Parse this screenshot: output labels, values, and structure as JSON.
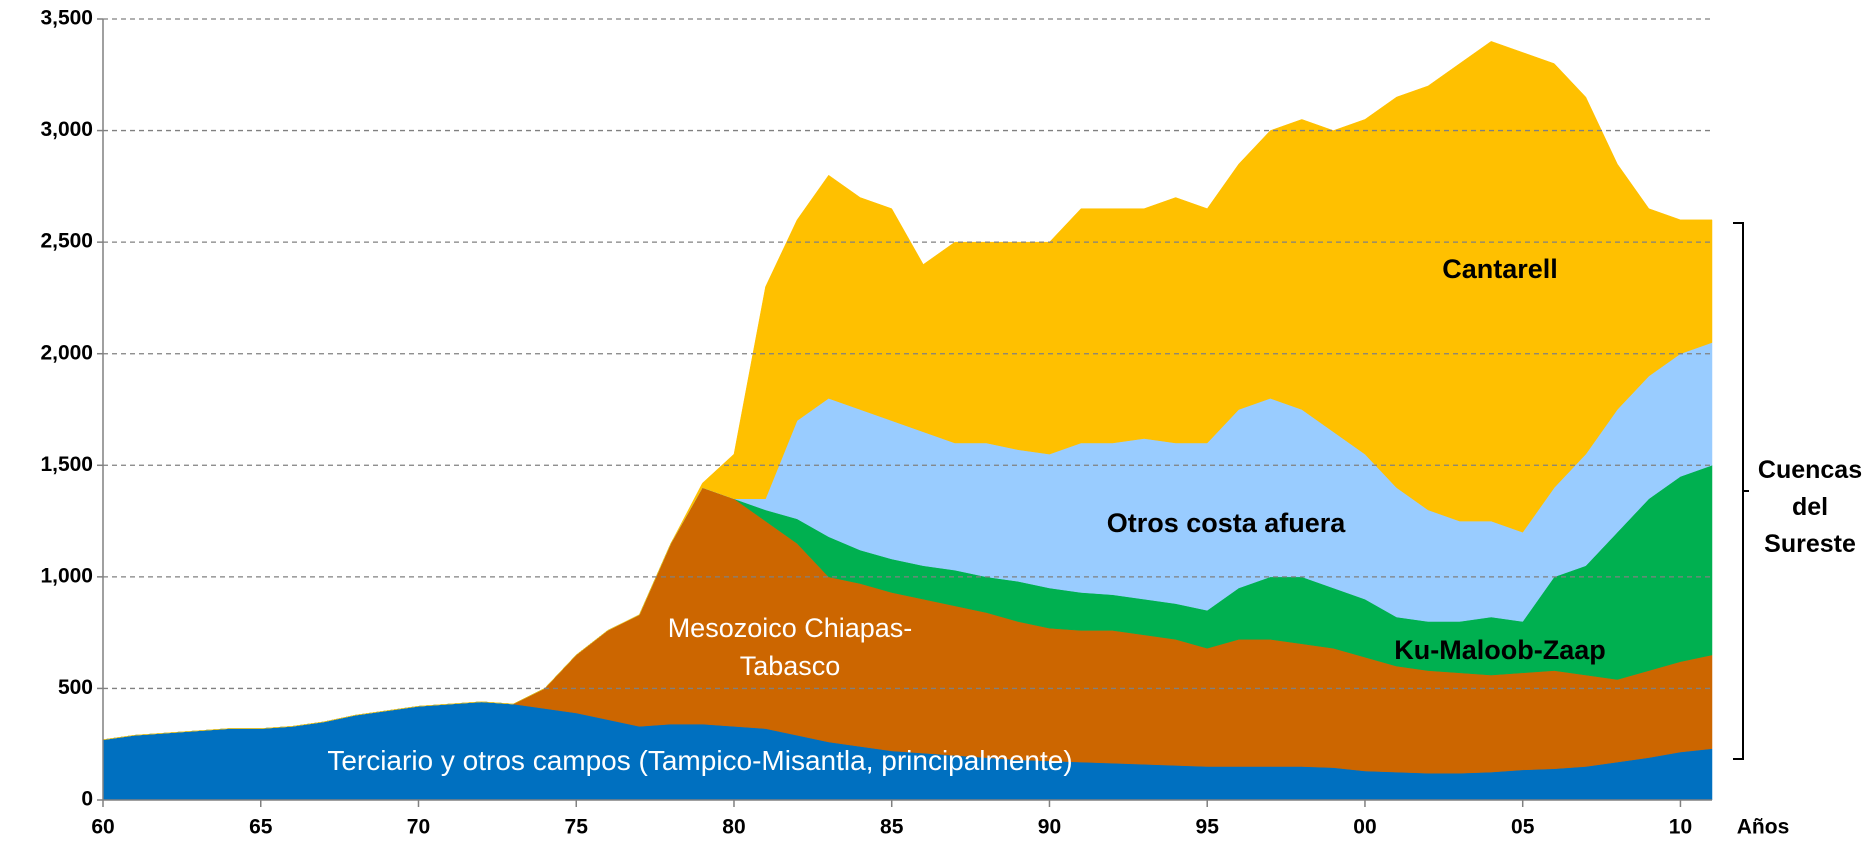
{
  "chart_data": {
    "type": "stacked_area",
    "x_label": "Años",
    "bracket_label": [
      "Cuencas",
      "del",
      "Sureste"
    ],
    "x": [
      1960,
      1961,
      1962,
      1963,
      1964,
      1965,
      1966,
      1967,
      1968,
      1969,
      1970,
      1971,
      1972,
      1973,
      1974,
      1975,
      1976,
      1977,
      1978,
      1979,
      1980,
      1981,
      1982,
      1983,
      1984,
      1985,
      1986,
      1987,
      1988,
      1989,
      1990,
      1991,
      1992,
      1993,
      1994,
      1995,
      1996,
      1997,
      1998,
      1999,
      2000,
      2001,
      2002,
      2003,
      2004,
      2005,
      2006,
      2007,
      2008,
      2009,
      2010,
      2011
    ],
    "xlim": [
      1960,
      2011
    ],
    "xticks": [
      {
        "value": 1960,
        "label": "60"
      },
      {
        "value": 1965,
        "label": "65"
      },
      {
        "value": 1970,
        "label": "70"
      },
      {
        "value": 1975,
        "label": "75"
      },
      {
        "value": 1980,
        "label": "80"
      },
      {
        "value": 1985,
        "label": "85"
      },
      {
        "value": 1990,
        "label": "90"
      },
      {
        "value": 1995,
        "label": "95"
      },
      {
        "value": 2000,
        "label": "00"
      },
      {
        "value": 2005,
        "label": "05"
      },
      {
        "value": 2010,
        "label": "10"
      }
    ],
    "ylim": [
      0,
      3500
    ],
    "yticks": [
      0,
      500,
      {
        "value": 1000,
        "label": "1,000"
      },
      {
        "value": 1500,
        "label": "1,500"
      },
      {
        "value": 2000,
        "label": "2,000"
      },
      {
        "value": 2500,
        "label": "2,500"
      },
      {
        "value": 3000,
        "label": "3,000"
      },
      {
        "value": 3500,
        "label": "3,500"
      }
    ],
    "grid": true,
    "series": [
      {
        "name": "Terciario y otros campos (Tampico-Misantla, principalmente)",
        "color": "#0070c0",
        "values": [
          270,
          290,
          300,
          310,
          320,
          320,
          330,
          350,
          380,
          400,
          420,
          430,
          440,
          430,
          410,
          390,
          360,
          330,
          340,
          340,
          330,
          320,
          290,
          260,
          240,
          220,
          210,
          200,
          190,
          180,
          175,
          170,
          165,
          160,
          155,
          150,
          150,
          150,
          150,
          145,
          130,
          125,
          120,
          120,
          125,
          135,
          140,
          150,
          170,
          190,
          215,
          230
        ]
      },
      {
        "name": "Mesozoico Chiapas-Tabasco",
        "color": "#cc6600",
        "values": [
          0,
          0,
          0,
          0,
          0,
          0,
          0,
          0,
          0,
          0,
          0,
          0,
          0,
          0,
          90,
          260,
          400,
          500,
          810,
          1060,
          1020,
          930,
          860,
          740,
          730,
          710,
          690,
          670,
          650,
          620,
          595,
          590,
          595,
          580,
          565,
          530,
          570,
          570,
          550,
          535,
          510,
          475,
          460,
          450,
          435,
          435,
          440,
          410,
          370,
          390,
          405,
          420
        ]
      },
      {
        "name": "Ku-Maloob-Zaap",
        "color": "#00b050",
        "values": [
          0,
          0,
          0,
          0,
          0,
          0,
          0,
          0,
          0,
          0,
          0,
          0,
          0,
          0,
          0,
          0,
          0,
          0,
          0,
          0,
          0,
          50,
          110,
          180,
          150,
          150,
          150,
          160,
          160,
          180,
          180,
          170,
          160,
          160,
          160,
          170,
          230,
          280,
          300,
          270,
          260,
          220,
          220,
          230,
          260,
          230,
          420,
          490,
          660,
          770,
          830,
          850
        ]
      },
      {
        "name": "Otros costa afuera",
        "color": "#99ccff",
        "values": [
          0,
          0,
          0,
          0,
          0,
          0,
          0,
          0,
          0,
          0,
          0,
          0,
          0,
          0,
          0,
          0,
          0,
          0,
          0,
          0,
          0,
          50,
          440,
          620,
          630,
          620,
          600,
          570,
          600,
          590,
          600,
          670,
          680,
          720,
          720,
          750,
          800,
          800,
          750,
          700,
          650,
          580,
          500,
          450,
          430,
          400,
          400,
          500,
          550,
          550,
          550,
          550
        ]
      },
      {
        "name": "Cantarell",
        "color": "#ffc000",
        "values": [
          0,
          0,
          0,
          0,
          0,
          0,
          0,
          0,
          0,
          0,
          0,
          0,
          0,
          0,
          0,
          0,
          0,
          0,
          0,
          20,
          200,
          950,
          900,
          1000,
          950,
          950,
          750,
          900,
          900,
          930,
          950,
          1050,
          1050,
          1030,
          1100,
          1050,
          1100,
          1200,
          1300,
          1350,
          1500,
          1750,
          1900,
          2050,
          2150,
          2150,
          1900,
          1600,
          1100,
          750,
          600,
          550
        ]
      }
    ]
  }
}
